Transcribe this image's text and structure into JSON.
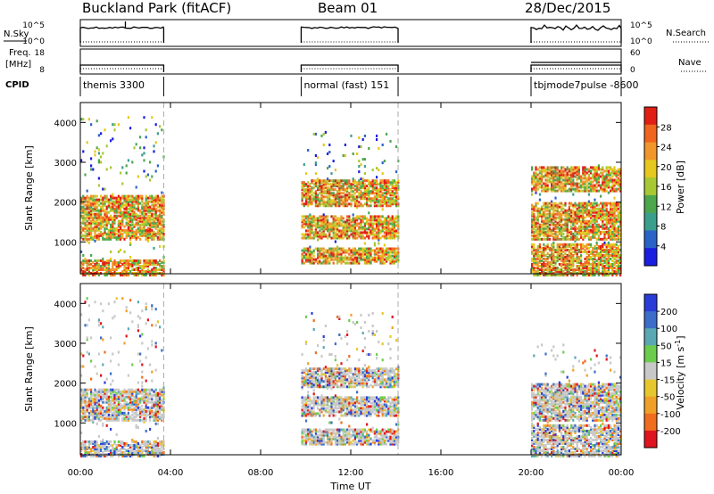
{
  "header": {
    "station": "Buckland Park (fitACF)",
    "beam": "Beam 01",
    "date": "28/Dec/2015"
  },
  "status_panel": {
    "nsky_label": "N.Sky",
    "nsky_top": "10^5",
    "nsky_bottom": "10^0",
    "nsearch_top": "10^5",
    "nsearch_bottom": "10^0",
    "nsearch_label": "N.Search",
    "freq_label_1": "Freq.",
    "freq_label_2": "[MHz]",
    "freq_top": "18",
    "freq_bottom": "8",
    "nave_top": "60",
    "nave_bottom": "0",
    "nave_label": "Nave",
    "cpid_label": "CPID",
    "cpid_segments": [
      {
        "label": "themis 3300",
        "start_hour": 0.0,
        "end_hour": 3.7
      },
      {
        "label": "normal (fast) 151",
        "start_hour": 9.8,
        "end_hour": 14.1
      },
      {
        "label": "tbjmode7pulse -8600",
        "start_hour": 20.0,
        "end_hour": 24.0
      }
    ]
  },
  "chart_data": [
    {
      "type": "heatmap",
      "name": "power-panel",
      "ylabel": "Slant Range [km]",
      "ylim": [
        200,
        4500
      ],
      "yticks": [
        1000,
        2000,
        3000,
        4000
      ],
      "xlim": [
        0,
        24
      ],
      "colorbar": {
        "label": "Power [dB]",
        "range": [
          0,
          32
        ],
        "ticks": [
          4,
          8,
          12,
          16,
          20,
          24,
          28
        ],
        "colors": [
          "#1a1ee0",
          "#2a63c8",
          "#3a9e8c",
          "#4ca64c",
          "#a8c832",
          "#e6c81e",
          "#f0962a",
          "#f0641e",
          "#e01e14"
        ]
      },
      "data_windows": [
        {
          "start_hour": 0.0,
          "end_hour": 3.7,
          "range_min": 200,
          "range_max": 4200,
          "dense_bands": [
            [
              200,
              600
            ],
            [
              1100,
              2200
            ]
          ]
        },
        {
          "start_hour": 9.8,
          "end_hour": 14.1,
          "range_min": 500,
          "range_max": 3800,
          "dense_bands": [
            [
              500,
              900
            ],
            [
              1100,
              1700
            ],
            [
              1900,
              2600
            ]
          ]
        },
        {
          "start_hour": 20.0,
          "end_hour": 24.0,
          "range_min": 200,
          "range_max": 3000,
          "dense_bands": [
            [
              200,
              1000
            ],
            [
              1100,
              2000
            ],
            [
              2300,
              2900
            ]
          ]
        }
      ]
    },
    {
      "type": "heatmap",
      "name": "velocity-panel",
      "ylabel": "Slant Range [km]",
      "ylim": [
        200,
        4500
      ],
      "yticks": [
        1000,
        2000,
        3000,
        4000
      ],
      "xlim": [
        0,
        24
      ],
      "colorbar": {
        "label_main": "Velocity [m s",
        "label_sup": "-1",
        "label_end": "]",
        "ticks": [
          "200",
          "100",
          "50",
          "15",
          "-15",
          "-50",
          "-100",
          "-200"
        ],
        "colors": [
          "#2a3cd8",
          "#3a6ec8",
          "#5aa8b4",
          "#6ccd4c",
          "#c8c8c8",
          "#e6c82e",
          "#f0a028",
          "#f06c1e",
          "#e0141e"
        ]
      },
      "data_windows": [
        {
          "start_hour": 0.0,
          "end_hour": 3.7,
          "range_min": 200,
          "range_max": 4200,
          "dense_bands": [
            [
              200,
              600
            ],
            [
              1100,
              1900
            ]
          ]
        },
        {
          "start_hour": 9.8,
          "end_hour": 14.1,
          "range_min": 500,
          "range_max": 3800,
          "dense_bands": [
            [
              500,
              900
            ],
            [
              1200,
              1700
            ],
            [
              1900,
              2400
            ]
          ]
        },
        {
          "start_hour": 20.0,
          "end_hour": 24.0,
          "range_min": 200,
          "range_max": 3000,
          "dense_bands": [
            [
              200,
              1000
            ],
            [
              1100,
              2000
            ]
          ]
        }
      ]
    }
  ],
  "xaxis": {
    "label": "Time UT",
    "ticks": [
      {
        "hour": 0,
        "label": "00:00"
      },
      {
        "hour": 4,
        "label": "04:00"
      },
      {
        "hour": 8,
        "label": "08:00"
      },
      {
        "hour": 12,
        "label": "12:00"
      },
      {
        "hour": 16,
        "label": "16:00"
      },
      {
        "hour": 20,
        "label": "20:00"
      },
      {
        "hour": 24,
        "label": "00:00"
      }
    ]
  }
}
